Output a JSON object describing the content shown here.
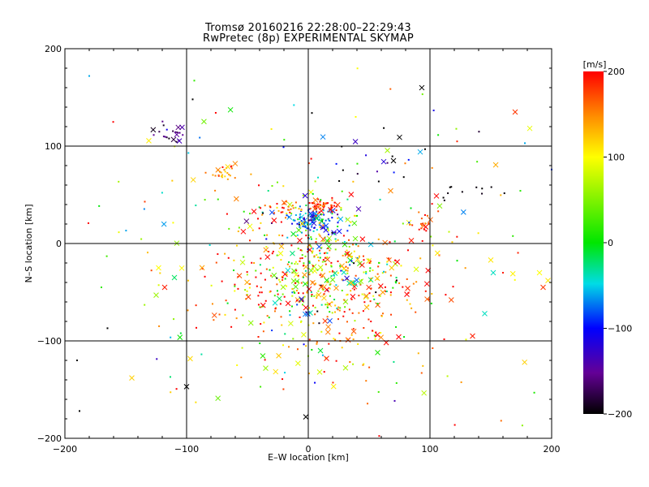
{
  "chart_data": {
    "type": "scatter",
    "title": "Tromsø 20160216 22:28:00–22:29:43",
    "subtitle": "RwPretec (8p) EXPERIMENTAL SKYMAP",
    "xlabel": "E–W location [km]",
    "ylabel": "N–S location [km]",
    "xlim": [
      -200,
      200
    ],
    "ylim": [
      -200,
      200
    ],
    "xticks": [
      "−200",
      "−100",
      "0",
      "100",
      "200"
    ],
    "yticks": [
      "−200",
      "−100",
      "0",
      "100",
      "200"
    ],
    "grid": true,
    "colorbar": {
      "label": "[m/s]",
      "range": [
        -200,
        200
      ],
      "ticks": [
        "−200",
        "−100",
        "0",
        "100",
        "200"
      ],
      "colormap": "rainbow"
    },
    "clusters": [
      {
        "cx": 5,
        "cy": 25,
        "sx": 10,
        "sy": 6,
        "n": 120,
        "vm": -90,
        "vs": 40
      },
      {
        "cx": 12,
        "cy": 38,
        "sx": 8,
        "sy": 4,
        "n": 50,
        "vm": 185,
        "vs": 20
      },
      {
        "cx": -22,
        "cy": 35,
        "sx": 8,
        "sy": 3,
        "n": 22,
        "vm": 150,
        "vs": 25
      },
      {
        "cx": -70,
        "cy": 73,
        "sx": 7,
        "sy": 5,
        "n": 28,
        "vm": 150,
        "vs": 25
      },
      {
        "cx": -115,
        "cy": 110,
        "sx": 8,
        "sy": 6,
        "n": 22,
        "vm": -170,
        "vs": 20
      },
      {
        "cx": 10,
        "cy": -30,
        "sx": 30,
        "sy": 35,
        "n": 320,
        "vm": 60,
        "vs": 90
      },
      {
        "cx": 40,
        "cy": -50,
        "sx": 45,
        "sy": 35,
        "n": 140,
        "vm": 170,
        "vs": 40
      },
      {
        "cx": -30,
        "cy": -30,
        "sx": 40,
        "sy": 35,
        "n": 120,
        "vm": 160,
        "vs": 60
      },
      {
        "cx": 95,
        "cy": 20,
        "sx": 8,
        "sy": 5,
        "n": 18,
        "vm": 175,
        "vs": 20
      },
      {
        "cx": 0,
        "cy": 0,
        "sx": 95,
        "sy": 85,
        "n": 200,
        "vm": 60,
        "vs": 130
      },
      {
        "cx": 130,
        "cy": 50,
        "sx": 20,
        "sy": 10,
        "n": 10,
        "vm": -200,
        "vs": 5
      },
      {
        "cx": 60,
        "cy": 80,
        "sx": 25,
        "sy": 15,
        "n": 14,
        "vm": -150,
        "vs": 60
      },
      {
        "cx": 0,
        "cy": -130,
        "sx": 80,
        "sy": 40,
        "n": 30,
        "vm": 150,
        "vs": 60
      }
    ],
    "points": [
      {
        "x": -180,
        "y": 172,
        "v": -60,
        "m": "dot"
      },
      {
        "x": -95,
        "y": 148,
        "v": -200,
        "m": "dot"
      },
      {
        "x": 3,
        "y": 134,
        "v": -200,
        "m": "dot"
      },
      {
        "x": 39,
        "y": 130,
        "v": 100,
        "m": "dot"
      },
      {
        "x": 170,
        "y": 135,
        "v": 180,
        "m": "x"
      },
      {
        "x": 75,
        "y": 109,
        "v": -200,
        "m": "x"
      },
      {
        "x": 92,
        "y": 94,
        "v": -60,
        "m": "x"
      },
      {
        "x": 62,
        "y": 84,
        "v": -120,
        "m": "x"
      },
      {
        "x": 70,
        "y": 85,
        "v": -200,
        "m": "x"
      },
      {
        "x": -100,
        "y": -147,
        "v": -200,
        "m": "x"
      },
      {
        "x": -2,
        "y": -178,
        "v": -200,
        "m": "x"
      },
      {
        "x": -145,
        "y": -138,
        "v": 120,
        "m": "x"
      },
      {
        "x": -190,
        "y": -120,
        "v": -200,
        "m": "dot"
      },
      {
        "x": -165,
        "y": -87,
        "v": -200,
        "m": "dot"
      },
      {
        "x": -188,
        "y": -172,
        "v": -200,
        "m": "dot"
      },
      {
        "x": -170,
        "y": -45,
        "v": 20,
        "m": "dot"
      },
      {
        "x": -123,
        "y": -25,
        "v": 100,
        "m": "x"
      },
      {
        "x": -118,
        "y": -45,
        "v": 190,
        "m": "x"
      },
      {
        "x": -125,
        "y": -53,
        "v": 60,
        "m": "x"
      },
      {
        "x": -110,
        "y": -35,
        "v": -20,
        "m": "x"
      },
      {
        "x": 190,
        "y": -30,
        "v": 100,
        "m": "x"
      },
      {
        "x": 193,
        "y": -45,
        "v": 180,
        "m": "x"
      },
      {
        "x": 197,
        "y": -38,
        "v": 110,
        "m": "x"
      },
      {
        "x": 152,
        "y": -30,
        "v": -40,
        "m": "x"
      },
      {
        "x": 150,
        "y": -17,
        "v": 110,
        "m": "x"
      },
      {
        "x": 145,
        "y": -72,
        "v": -40,
        "m": "x"
      },
      {
        "x": 135,
        "y": -95,
        "v": 190,
        "m": "x"
      },
      {
        "x": 57,
        "y": -112,
        "v": 10,
        "m": "x"
      },
      {
        "x": -35,
        "y": -128,
        "v": 60,
        "m": "x"
      },
      {
        "x": 15,
        "y": -118,
        "v": 190,
        "m": "x"
      },
      {
        "x": 10,
        "y": -110,
        "v": -10,
        "m": "x"
      },
      {
        "x": 160,
        "y": -30,
        "v": 190,
        "m": "dot"
      },
      {
        "x": 178,
        "y": 103,
        "v": -60,
        "m": "dot"
      }
    ]
  }
}
